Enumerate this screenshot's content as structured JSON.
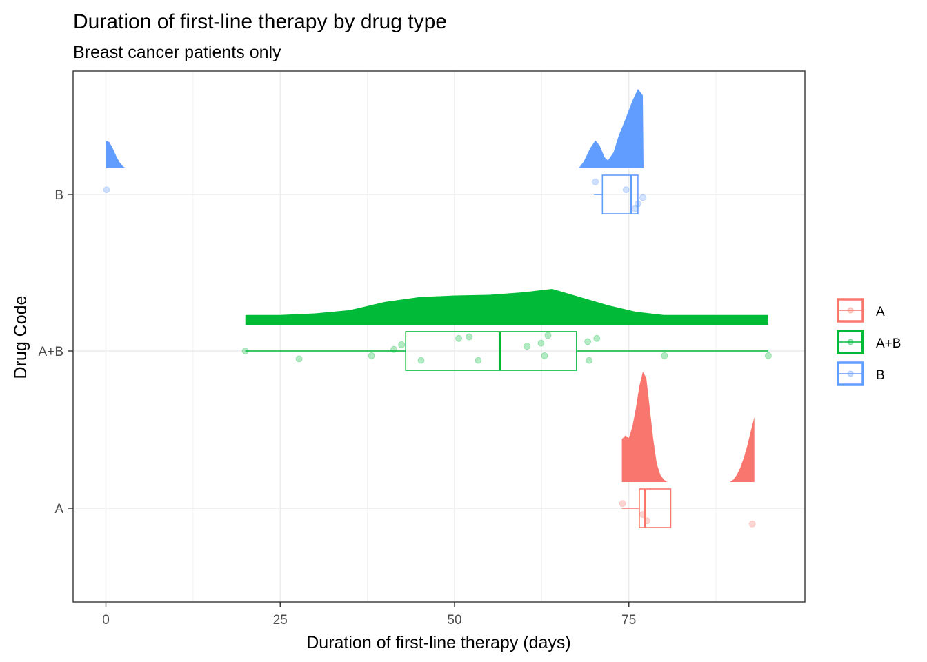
{
  "chart_data": {
    "type": "raincloud",
    "title": "Duration of first-line therapy by drug type",
    "subtitle": "Breast cancer patients only",
    "xlabel": "Duration of first-line therapy (days)",
    "ylabel": "Drug Code",
    "xlim": [
      -4.6,
      100
    ],
    "x_ticks": [
      0,
      25,
      50,
      75
    ],
    "categories": [
      "A",
      "A+B",
      "B"
    ],
    "grid": true,
    "legend_position": "right",
    "colors": {
      "A": "#F8766D",
      "A+B": "#00BA38",
      "B": "#619CFF"
    },
    "legend": [
      {
        "label": "A",
        "color": "#F8766D"
      },
      {
        "label": "A+B",
        "color": "#00BA38"
      },
      {
        "label": "B",
        "color": "#619CFF"
      }
    ],
    "series": [
      {
        "name": "A",
        "box": {
          "lower_whisker": 74,
          "q1": 76.5,
          "median": 77.3,
          "q3": 81,
          "upper_whisker": 81
        },
        "points": [
          {
            "x": 74.1,
            "jitter": 0.03
          },
          {
            "x": 77.0,
            "jitter": -0.04
          },
          {
            "x": 77.6,
            "jitter": -0.08
          },
          {
            "x": 92.7,
            "jitter": -0.1
          }
        ],
        "density": [
          [
            74,
            0.35
          ],
          [
            74.5,
            0.38
          ],
          [
            75,
            0.36
          ],
          [
            75.5,
            0.45
          ],
          [
            76,
            0.6
          ],
          [
            76.5,
            0.78
          ],
          [
            77,
            0.9
          ],
          [
            77.5,
            0.85
          ],
          [
            78,
            0.6
          ],
          [
            78.5,
            0.35
          ],
          [
            79,
            0.15
          ],
          [
            79.5,
            0.06
          ],
          [
            80,
            0.02
          ],
          [
            80.5,
            0.0
          ],
          [
            89.5,
            0.0
          ],
          [
            90,
            0.02
          ],
          [
            90.5,
            0.06
          ],
          [
            91,
            0.12
          ],
          [
            91.5,
            0.2
          ],
          [
            92,
            0.3
          ],
          [
            92.5,
            0.42
          ],
          [
            93,
            0.53
          ]
        ]
      },
      {
        "name": "A+B",
        "box": {
          "lower_whisker": 20,
          "q1": 43,
          "median": 56.5,
          "q3": 67.5,
          "upper_whisker": 95
        },
        "points": [
          {
            "x": 20,
            "jitter": 0.0
          },
          {
            "x": 27.7,
            "jitter": -0.05
          },
          {
            "x": 38.1,
            "jitter": -0.03
          },
          {
            "x": 41.3,
            "jitter": 0.01
          },
          {
            "x": 42.4,
            "jitter": 0.04
          },
          {
            "x": 45.2,
            "jitter": -0.06
          },
          {
            "x": 50.6,
            "jitter": 0.08
          },
          {
            "x": 52.1,
            "jitter": 0.09
          },
          {
            "x": 53.4,
            "jitter": -0.06
          },
          {
            "x": 60.4,
            "jitter": 0.03
          },
          {
            "x": 62.4,
            "jitter": 0.05
          },
          {
            "x": 62.9,
            "jitter": -0.03
          },
          {
            "x": 63.4,
            "jitter": 0.1
          },
          {
            "x": 69.1,
            "jitter": 0.06
          },
          {
            "x": 69.3,
            "jitter": -0.06
          },
          {
            "x": 70.4,
            "jitter": 0.08
          },
          {
            "x": 80.1,
            "jitter": -0.03
          },
          {
            "x": 95,
            "jitter": -0.03
          }
        ],
        "density": [
          [
            20,
            0.03
          ],
          [
            25,
            0.03
          ],
          [
            30,
            0.035
          ],
          [
            35,
            0.045
          ],
          [
            40,
            0.07
          ],
          [
            45,
            0.085
          ],
          [
            50,
            0.09
          ],
          [
            55,
            0.092
          ],
          [
            60,
            0.1
          ],
          [
            64,
            0.11
          ],
          [
            68,
            0.085
          ],
          [
            72,
            0.06
          ],
          [
            76,
            0.04
          ],
          [
            80,
            0.03
          ],
          [
            85,
            0.03
          ],
          [
            90,
            0.03
          ],
          [
            95,
            0.03
          ]
        ]
      },
      {
        "name": "B",
        "box": {
          "lower_whisker": 70,
          "q1": 71.2,
          "median": 75.3,
          "q3": 76.3,
          "upper_whisker": 76.3
        },
        "points": [
          {
            "x": 0.1,
            "jitter": 0.03
          },
          {
            "x": 70.2,
            "jitter": 0.08
          },
          {
            "x": 74.6,
            "jitter": 0.03
          },
          {
            "x": 75.9,
            "jitter": -0.09
          },
          {
            "x": 76.3,
            "jitter": -0.06
          },
          {
            "x": 77.0,
            "jitter": -0.02
          }
        ],
        "density": [
          [
            0,
            0.35
          ],
          [
            0.5,
            0.33
          ],
          [
            1,
            0.25
          ],
          [
            1.5,
            0.15
          ],
          [
            2,
            0.07
          ],
          [
            2.5,
            0.02
          ],
          [
            3,
            0.0
          ],
          [
            67.8,
            0.0
          ],
          [
            68.5,
            0.08
          ],
          [
            69.5,
            0.26
          ],
          [
            70.2,
            0.35
          ],
          [
            70.8,
            0.29
          ],
          [
            71.5,
            0.14
          ],
          [
            72,
            0.1
          ],
          [
            72.8,
            0.2
          ],
          [
            73.5,
            0.4
          ],
          [
            74.5,
            0.62
          ],
          [
            75.5,
            0.85
          ],
          [
            76.3,
            1.0
          ],
          [
            77,
            0.92
          ],
          [
            77.1,
            0.0
          ]
        ]
      }
    ]
  }
}
